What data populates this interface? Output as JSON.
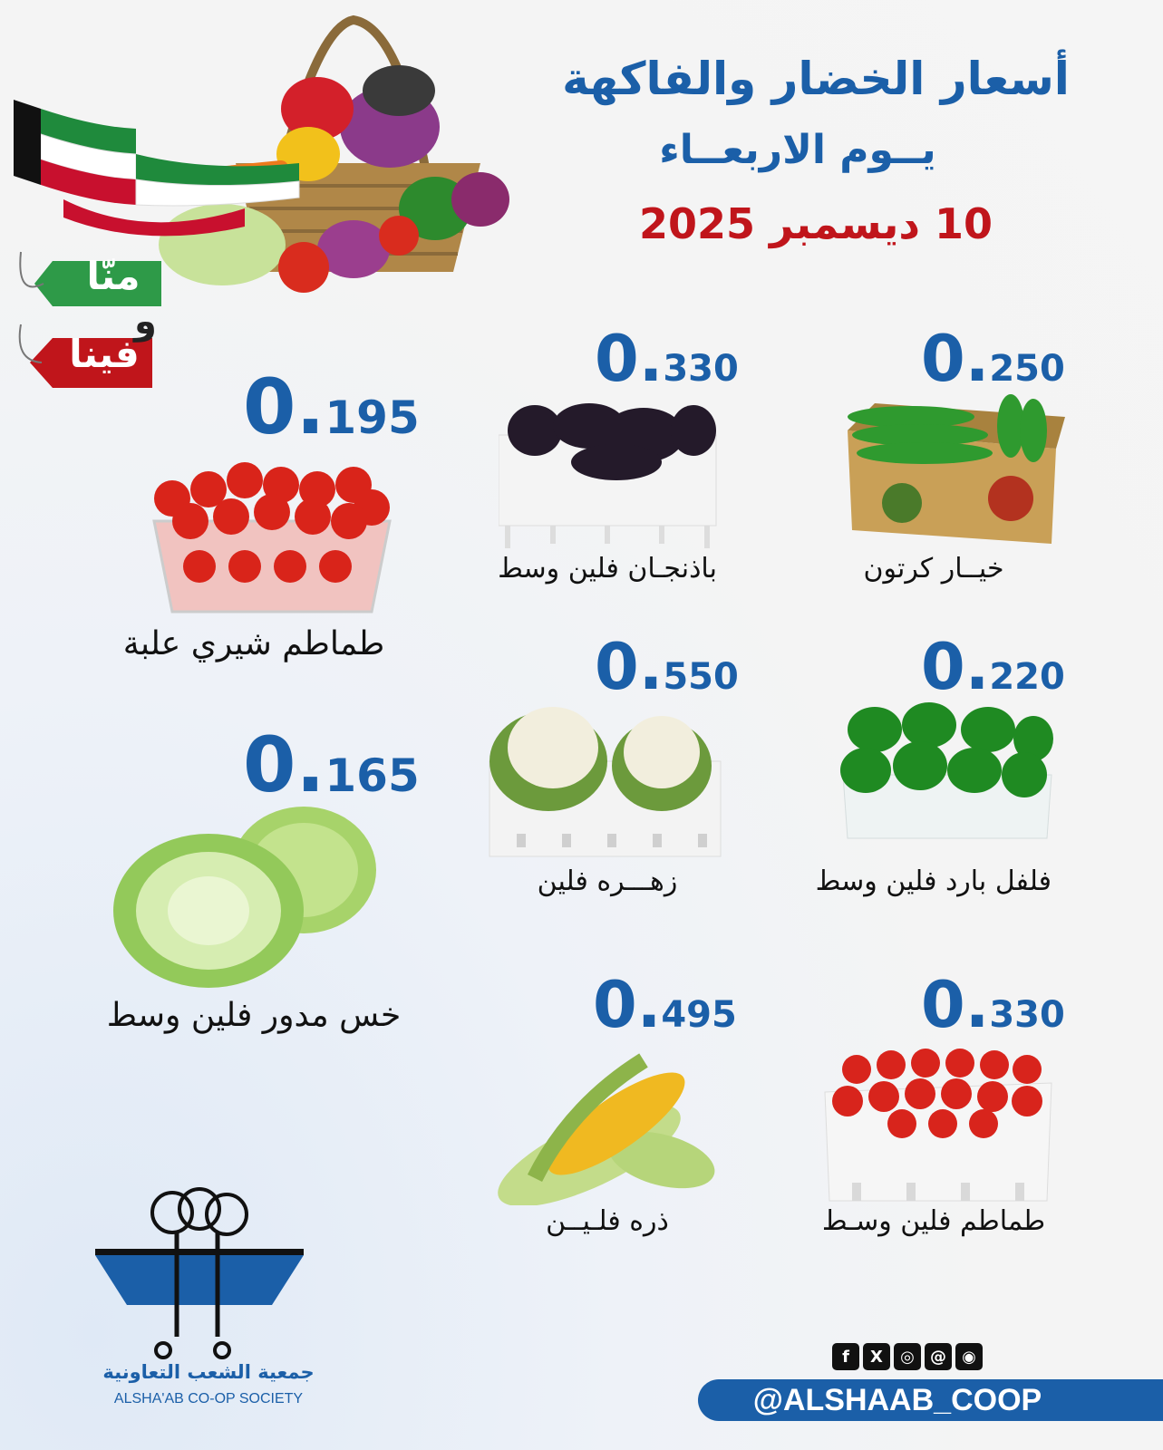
{
  "header": {
    "title": "أسعار الخضار والفاكهة",
    "day": "يــوم الاربعــاء",
    "date": "10 ديسمبر 2025"
  },
  "tag": {
    "top": "منّا",
    "conj": "و",
    "bottom": "فينا"
  },
  "items": [
    {
      "price_int": "0.",
      "price_dec": "250",
      "name": "خيــار كرتون",
      "icon": "cucumber-box"
    },
    {
      "price_int": "0.",
      "price_dec": "330",
      "name": "باذنجـان فلين وسط",
      "icon": "eggplant-foam"
    },
    {
      "price_int": "0.",
      "price_dec": "195",
      "name": "طماطم شيري علبة",
      "icon": "cherry-tomato-box"
    },
    {
      "price_int": "0.",
      "price_dec": "220",
      "name": "فلفل بارد فلين وسط",
      "icon": "green-pepper-foam"
    },
    {
      "price_int": "0.",
      "price_dec": "550",
      "name": "زهـــره فلين",
      "icon": "cauliflower-foam"
    },
    {
      "price_int": "0.",
      "price_dec": "165",
      "name": "خس مدور فلين وسط",
      "icon": "iceberg-lettuce"
    },
    {
      "price_int": "0.",
      "price_dec": "330",
      "name": "طماطم فلين وسـط",
      "icon": "tomato-foam"
    },
    {
      "price_int": "0.",
      "price_dec": "495",
      "name": "ذره فلـيــن",
      "icon": "corn"
    }
  ],
  "social": {
    "icons": [
      "facebook-icon",
      "x-icon",
      "instagram-icon",
      "threads-icon",
      "snapchat-icon"
    ],
    "glyphs": [
      "f",
      "X",
      "◎",
      "@",
      "◉"
    ],
    "handle": "@ALSHAAB_COOP"
  },
  "logo": {
    "name_ar": "جمعية الشعب التعاونية",
    "name_en": "ALSHA'AB CO-OP SOCIETY"
  },
  "colors": {
    "blue": "#1b5fa8",
    "red": "#c0151b",
    "green": "#2e9a48"
  }
}
